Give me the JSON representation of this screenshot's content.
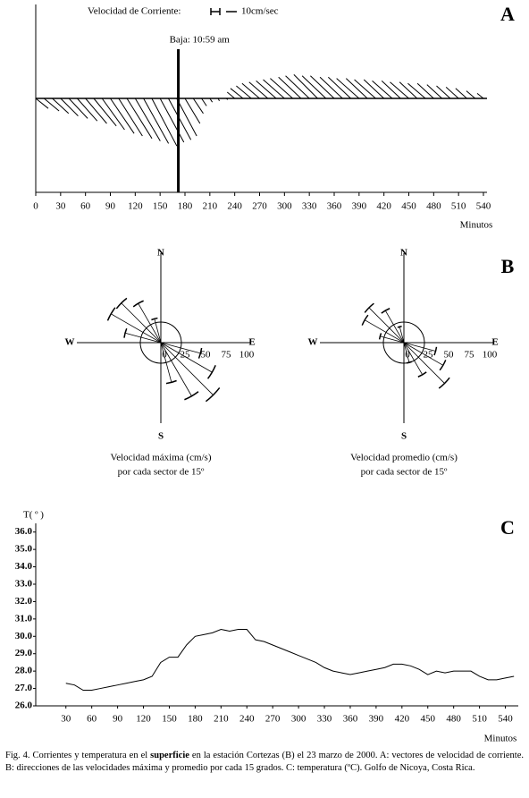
{
  "chart_data": [
    {
      "type": "quiver",
      "panel": "A",
      "legend_label": "Velocidad de Corriente:",
      "scale_label": "10cm/sec",
      "annotation": "Baja: 10:59 am",
      "annotation_x": 172,
      "xlabel": "Minutos",
      "xlim": [
        0,
        540
      ],
      "xticks": [
        0,
        30,
        60,
        90,
        120,
        150,
        180,
        210,
        240,
        270,
        300,
        330,
        360,
        390,
        420,
        450,
        480,
        510,
        540
      ],
      "x": [
        0,
        10,
        20,
        30,
        40,
        50,
        60,
        70,
        80,
        90,
        100,
        110,
        120,
        130,
        140,
        150,
        160,
        170,
        180,
        190,
        200,
        210,
        220,
        230,
        240,
        250,
        260,
        270,
        280,
        290,
        300,
        310,
        320,
        330,
        340,
        350,
        360,
        370,
        380,
        390,
        400,
        410,
        420,
        430,
        440,
        450,
        460,
        470,
        480,
        490,
        500,
        510,
        520,
        530,
        540
      ],
      "u": [
        10,
        12,
        13,
        14,
        15,
        16,
        17,
        18,
        18,
        19,
        19,
        20,
        20,
        20,
        20,
        19,
        18,
        16,
        12,
        8,
        4,
        2,
        1,
        1,
        -6,
        -10,
        -12,
        -14,
        -15,
        -16,
        -17,
        -18,
        -18,
        -19,
        -19,
        -19,
        -19,
        -18,
        -18,
        -18,
        -17,
        -17,
        -16,
        -16,
        -15,
        -15,
        -14,
        -14,
        -13,
        -12,
        -11,
        -10,
        -9,
        -7,
        -5
      ],
      "v": [
        -8,
        -10,
        -12,
        -14,
        -16,
        -18,
        -20,
        -22,
        -25,
        -28,
        -30,
        -32,
        -34,
        -36,
        -38,
        -35,
        -33,
        -30,
        -20,
        -12,
        -6,
        -3,
        -2,
        -1,
        5,
        8,
        10,
        12,
        13,
        14,
        15,
        16,
        17,
        18,
        19,
        18,
        18,
        17,
        17,
        16,
        16,
        15,
        15,
        14,
        14,
        13,
        13,
        12,
        12,
        11,
        10,
        9,
        8,
        6,
        4
      ]
    },
    {
      "type": "rose",
      "panel": "B",
      "north": "N",
      "south": "S",
      "east": "E",
      "west": "W",
      "rlim": [
        0,
        100
      ],
      "rticks": [
        0,
        25,
        50,
        75,
        100
      ],
      "directions": [
        285,
        300,
        315,
        330,
        345,
        105,
        120,
        135,
        150,
        165
      ],
      "values": [
        45,
        70,
        68,
        55,
        30,
        50,
        72,
        90,
        75,
        50
      ],
      "caption": [
        "Velocidad máxima (cm/s)",
        "por cada sector de 15º"
      ]
    },
    {
      "type": "rose",
      "north": "N",
      "south": "S",
      "east": "E",
      "west": "W",
      "rlim": [
        0,
        100
      ],
      "rticks": [
        0,
        25,
        50,
        75,
        100
      ],
      "directions": [
        285,
        300,
        315,
        330,
        345,
        105,
        120,
        135,
        150,
        165
      ],
      "values": [
        30,
        55,
        60,
        45,
        20,
        40,
        55,
        70,
        45,
        25
      ],
      "caption": [
        "Velocidad promedio (cm/s)",
        "por cada sector de 15º"
      ]
    },
    {
      "type": "line",
      "panel": "C",
      "ylabel": "T( º )",
      "xlabel": "Minutos",
      "xlim": [
        -5,
        555
      ],
      "xticks": [
        30,
        60,
        90,
        120,
        150,
        180,
        210,
        240,
        270,
        300,
        330,
        360,
        390,
        420,
        450,
        480,
        510,
        540
      ],
      "ylim": [
        26,
        36.5
      ],
      "yticks": [
        {
          "value": 26,
          "label": "26.0"
        },
        {
          "value": 27,
          "label": "27.0"
        },
        {
          "value": 28,
          "label": "28.0"
        },
        {
          "value": 29,
          "label": "29.0"
        },
        {
          "value": 30,
          "label": "30.0"
        },
        {
          "value": 31,
          "label": "31.0"
        },
        {
          "value": 32,
          "label": "32.0"
        },
        {
          "value": 33,
          "label": "33.0"
        },
        {
          "value": 34,
          "label": "34.0"
        },
        {
          "value": 35,
          "label": "35.0"
        },
        {
          "value": 36,
          "label": "36.0"
        }
      ],
      "x": [
        30,
        40,
        50,
        60,
        70,
        80,
        90,
        100,
        110,
        120,
        130,
        140,
        150,
        160,
        170,
        180,
        190,
        200,
        210,
        220,
        230,
        240,
        250,
        260,
        270,
        280,
        290,
        300,
        310,
        320,
        330,
        340,
        350,
        360,
        370,
        380,
        390,
        400,
        410,
        420,
        430,
        440,
        450,
        460,
        470,
        480,
        490,
        500,
        510,
        520,
        530,
        540,
        550
      ],
      "values": [
        27.3,
        27.2,
        26.9,
        26.9,
        27.0,
        27.1,
        27.2,
        27.3,
        27.4,
        27.5,
        27.7,
        28.5,
        28.8,
        28.8,
        29.5,
        30.0,
        30.1,
        30.2,
        30.4,
        30.3,
        30.4,
        30.4,
        29.8,
        29.7,
        29.5,
        29.3,
        29.1,
        28.9,
        28.7,
        28.5,
        28.2,
        28.0,
        27.9,
        27.8,
        27.9,
        28.0,
        28.1,
        28.2,
        28.4,
        28.4,
        28.3,
        28.1,
        27.8,
        28.0,
        27.9,
        28.0,
        28.0,
        28.0,
        27.7,
        27.5,
        27.5,
        27.6,
        27.7
      ]
    }
  ],
  "caption": [
    "Fig. 4. Corrientes y temperatura en el ",
    "superficie",
    " en la estación Cortezas (B) el 23 marzo de 2000. A: vectores de velocidad de corriente. B: direcciones de las velocidades máxima y promedio por cada 15 grados. C: temperatura (ºC). Golfo de Nicoya, Costa Rica."
  ]
}
